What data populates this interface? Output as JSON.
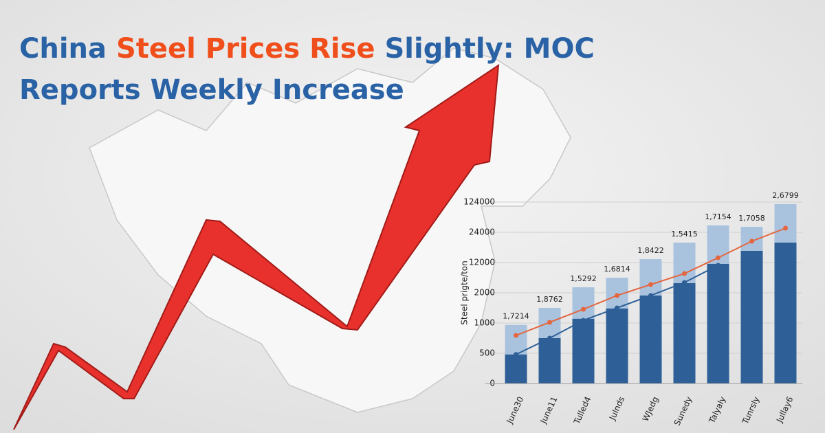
{
  "headline": {
    "part1": "China ",
    "part2": "Steel Prices Rise",
    "part3": " Slightly: MOC",
    "line2": "Reports Weekly Increase"
  },
  "chart_data": {
    "type": "bar",
    "y_label": "Steel prigte/ton",
    "categories": [
      "June30",
      "June11",
      "Tulled4",
      "Julnds",
      "WJedg",
      "Sunedy",
      "Talyaly",
      "Tunrsly",
      "Jullay6"
    ],
    "bar_labels": [
      "1,7214",
      "1,8762",
      "1,5292",
      "1,6814",
      "1,8422",
      "1,5415",
      "1,7154",
      "1,7058",
      "2,6799"
    ],
    "ylim": [
      0,
      124000
    ],
    "yticks": [
      0,
      500,
      1000,
      2000,
      12000,
      24000,
      124000
    ],
    "yscale": "tick-spaced",
    "grid": true,
    "series": [
      {
        "kind": "bar",
        "color": "#a9c3de",
        "values": [
          970,
          1500,
          3820,
          7000,
          13360,
          19910,
          46730,
          42180,
          117180
        ]
      },
      {
        "kind": "bar",
        "color": "#2e5f97",
        "values": [
          480,
          750,
          1140,
          1480,
          1910,
          5180,
          11550,
          16640,
          19910
        ]
      },
      {
        "kind": "line",
        "color": "#e3663f",
        "values": [
          795,
          1023,
          1455,
          1910,
          4730,
          8360,
          13910,
          20450,
          37640
        ]
      },
      {
        "kind": "line",
        "color": "#2e5f97",
        "values": [
          480,
          750,
          1090,
          1500,
          1910,
          5410,
          11090,
          null,
          null
        ]
      }
    ]
  }
}
